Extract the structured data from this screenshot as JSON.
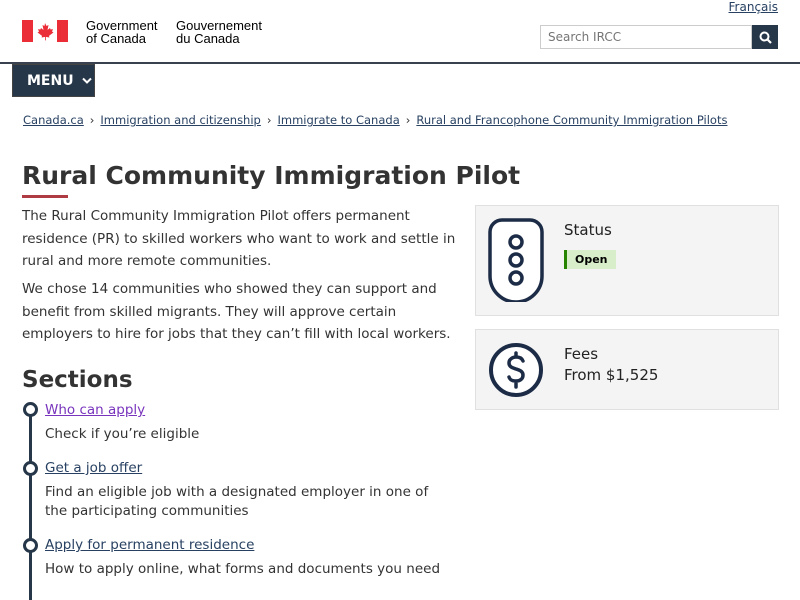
{
  "header": {
    "language_link": "Français",
    "gov_en": [
      "Government",
      "of Canada"
    ],
    "gov_fr": [
      "Gouvernement",
      "du Canada"
    ],
    "search_placeholder": "Search IRCC",
    "search_icon": "magnifier-icon"
  },
  "menu": {
    "label": "MENU"
  },
  "breadcrumb": [
    "Canada.ca",
    "Immigration and citizenship",
    "Immigrate to Canada",
    "Rural and Francophone Community Immigration Pilots"
  ],
  "page": {
    "title": "Rural Community Immigration Pilot",
    "paragraphs": [
      "The Rural Community Immigration Pilot offers permanent residence (PR) to skilled workers who want to work and settle in rural and more remote communities.",
      "We chose 14 communities who showed they can support and benefit from skilled migrants. They will approve certain employers to hire for jobs that they can’t fill with local workers."
    ]
  },
  "status_card": {
    "title": "Status",
    "badge": "Open",
    "icon": "traffic-light-icon"
  },
  "fees_card": {
    "title": "Fees",
    "value": "From $1,525",
    "icon": "dollar-circle-icon"
  },
  "sections": {
    "heading": "Sections",
    "items": [
      {
        "link": "Who can apply",
        "desc": "Check if you’re eligible"
      },
      {
        "link": "Get a job offer",
        "desc": "Find an eligible job with a designated employer in one of the participating communities"
      },
      {
        "link": "Apply for permanent residence",
        "desc": "How to apply online, what forms and documents you need"
      }
    ]
  },
  "colors": {
    "brand_dark": "#26374a",
    "accent_red": "#af3c43",
    "visited_link": "#7834bc",
    "status_green": "#278400"
  }
}
